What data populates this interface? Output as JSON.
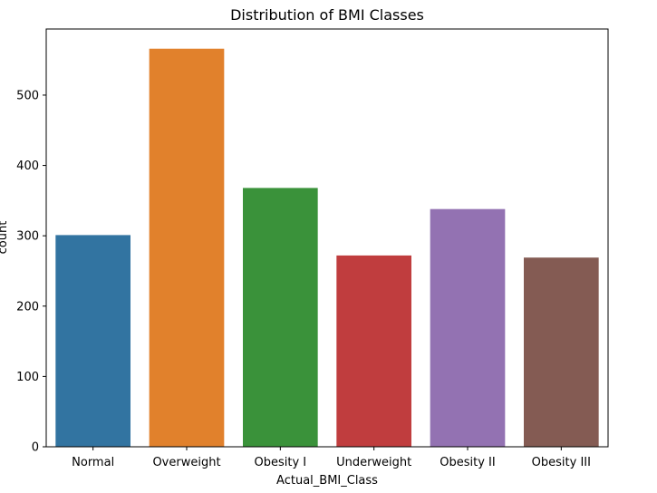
{
  "chart_data": {
    "type": "bar",
    "title": "Distribution of BMI Classes",
    "xlabel": "Actual_BMI_Class",
    "ylabel": "count",
    "categories": [
      "Normal",
      "Overweight",
      "Obesity I",
      "Underweight",
      "Obesity II",
      "Obesity III"
    ],
    "values": [
      301,
      566,
      368,
      272,
      338,
      269
    ],
    "colors": [
      "#3274a1",
      "#e1812c",
      "#3a923a",
      "#c03d3e",
      "#9372b2",
      "#845b53"
    ],
    "ylim": [
      0,
      594
    ],
    "yticks": [
      0,
      100,
      200,
      300,
      400,
      500
    ],
    "grid": false,
    "legend": "none"
  }
}
